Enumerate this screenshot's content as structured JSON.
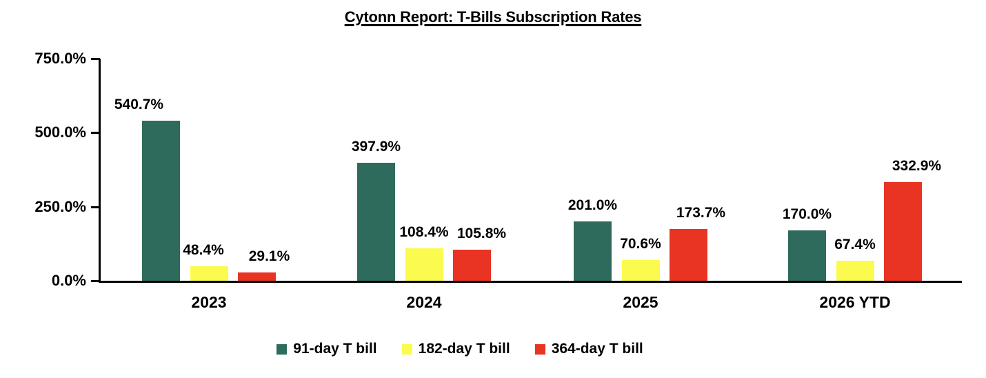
{
  "chart_data": {
    "type": "bar",
    "title": "Cytonn Report: T-Bills Subscription Rates",
    "categories": [
      "2023",
      "2024",
      "2025",
      "2026 YTD"
    ],
    "series": [
      {
        "name": "91-day T bill",
        "color": "#2E6B5C",
        "values": [
          540.7,
          397.9,
          201.0,
          170.0
        ]
      },
      {
        "name": "182-day T bill",
        "color": "#FBFB4F",
        "values": [
          48.4,
          108.4,
          70.6,
          67.4
        ]
      },
      {
        "name": "364-day T bill",
        "color": "#E93323",
        "values": [
          29.1,
          105.8,
          173.7,
          332.9
        ]
      }
    ],
    "data_labels": [
      [
        "540.7%",
        "48.4%",
        "29.1%"
      ],
      [
        "397.9%",
        "108.4%",
        "105.8%"
      ],
      [
        "201.0%",
        "70.6%",
        "173.7%"
      ],
      [
        "170.0%",
        "67.4%",
        "332.9%"
      ]
    ],
    "ylim": [
      0,
      750
    ],
    "yticks": [
      0,
      250,
      500,
      750
    ],
    "ytick_labels": [
      "0.0%",
      "250.0%",
      "500.0%",
      "750.0%"
    ],
    "grid": false,
    "legend_position": "bottom",
    "axis_color": "#000000",
    "label_dx": [
      [
        -32,
        -8,
        18
      ],
      [
        0,
        0,
        14
      ],
      [
        0,
        0,
        18
      ],
      [
        0,
        0,
        20
      ]
    ]
  }
}
